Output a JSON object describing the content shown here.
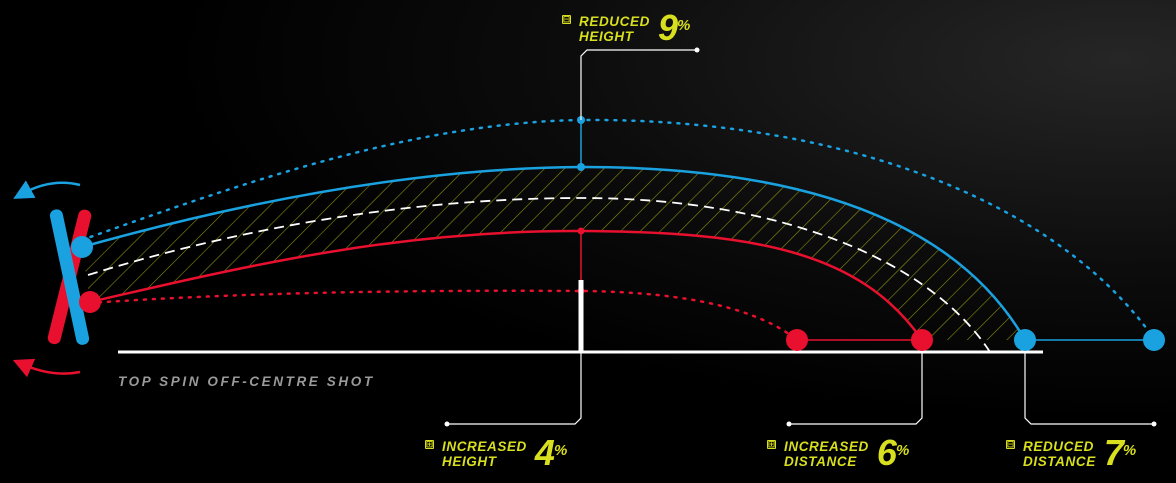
{
  "caption": "TOP SPIN OFF-CENTRE SHOT",
  "callouts": {
    "reduced_height": {
      "sign": "⊟",
      "line1": "REDUCED",
      "line2": "HEIGHT",
      "value": "9",
      "unit": "%"
    },
    "increased_height": {
      "sign": "⊞",
      "line1": "INCREASED",
      "line2": "HEIGHT",
      "value": "4",
      "unit": "%"
    },
    "increased_distance": {
      "sign": "⊞",
      "line1": "INCREASED",
      "line2": "DISTANCE",
      "value": "6",
      "unit": "%"
    },
    "reduced_distance": {
      "sign": "⊟",
      "line1": "REDUCED",
      "line2": "DISTANCE",
      "value": "7",
      "unit": "%"
    }
  },
  "colors": {
    "blue": "#1aa1e0",
    "red": "#e8102e",
    "accent": "#d8df1e",
    "ground": "#ffffff",
    "caption": "#9a9a9a"
  }
}
